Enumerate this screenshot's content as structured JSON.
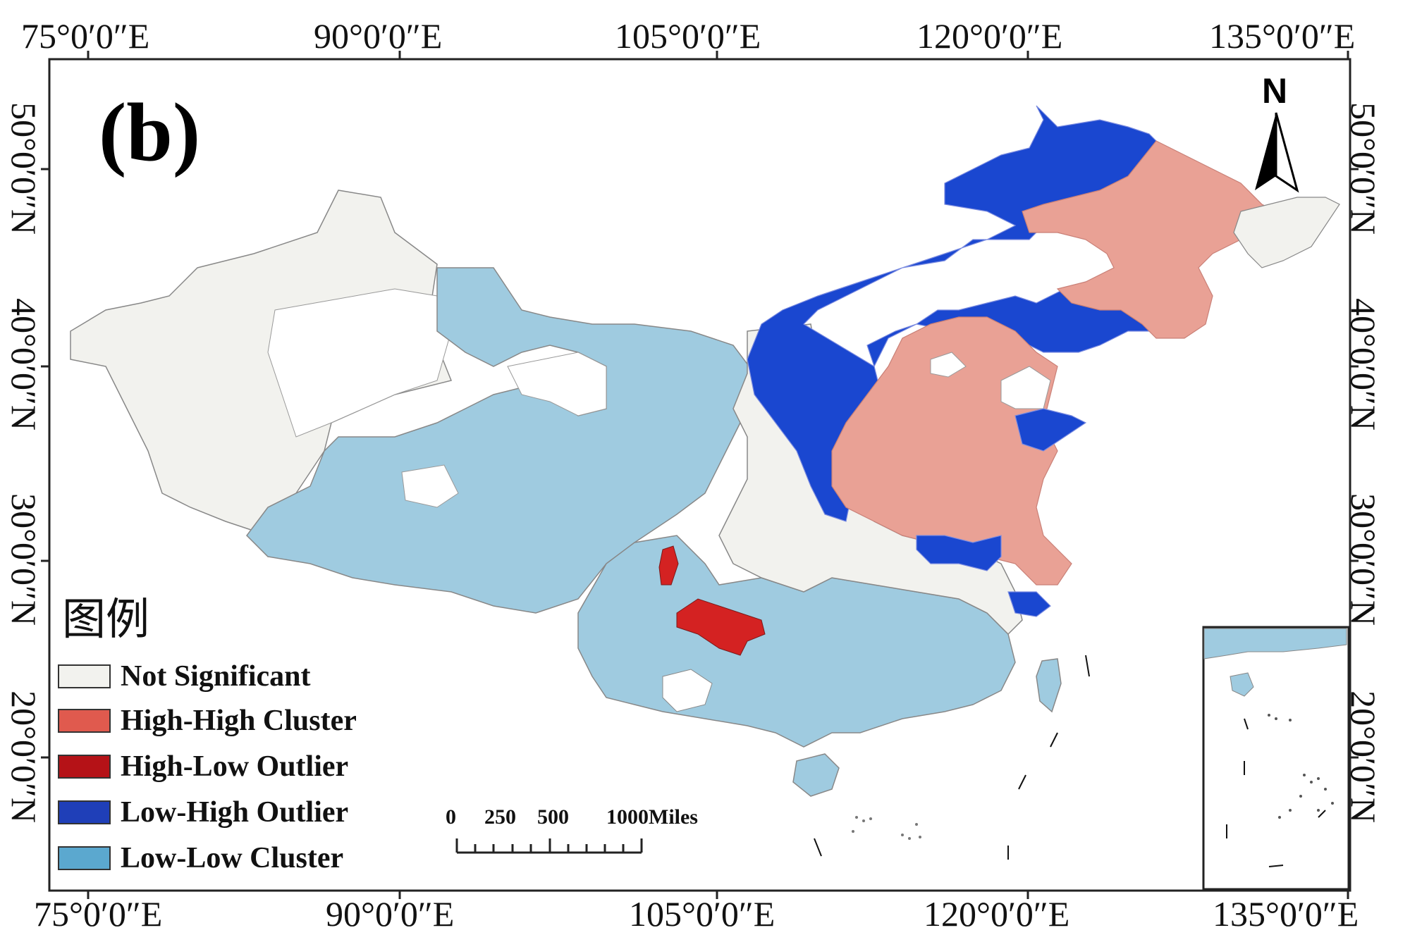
{
  "panel_label": "(b)",
  "north_label": "N",
  "longitude_labels": [
    "75°0′0″E",
    "90°0′0″E",
    "105°0′0″E",
    "120°0′0″E",
    "135°0′0″E"
  ],
  "latitude_labels": [
    "50°0′0″N",
    "40°0′0″N",
    "30°0′0″N",
    "20°0′0″N"
  ],
  "legend": {
    "title": "图例",
    "items": [
      {
        "label": "Not Significant",
        "color": "#f2f2ee"
      },
      {
        "label": "High-High Cluster",
        "color": "#e05a4e"
      },
      {
        "label": "High-Low Outlier",
        "color": "#b51217"
      },
      {
        "label": "Low-High Outlier",
        "color": "#1f3fb8"
      },
      {
        "label": "Low-Low Cluster",
        "color": "#5ba8cf"
      }
    ]
  },
  "scale_bar": {
    "ticks": [
      "0",
      "250",
      "500",
      "1000Miles"
    ]
  },
  "map_colors": {
    "not_significant": "#f2f2ee",
    "high_high": "#e9a195",
    "high_low": "#d42222",
    "low_high": "#1a47d0",
    "low_low": "#9fcbe0",
    "border": "#888888"
  }
}
